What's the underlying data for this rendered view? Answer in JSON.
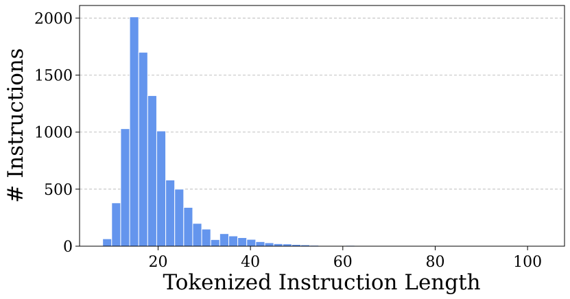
{
  "chart_data": {
    "type": "bar",
    "title": "",
    "xlabel": "Tokenized Instruction Length",
    "ylabel": "# Instructions",
    "xlim": [
      3,
      108
    ],
    "ylim": [
      0,
      2110
    ],
    "xticks": [
      20,
      40,
      60,
      80,
      100
    ],
    "yticks": [
      0,
      500,
      1000,
      1500,
      2000
    ],
    "grid": "horizontal dashed",
    "bar_color": "#6495ED",
    "bins": {
      "start": 8,
      "width": 1.95,
      "values": [
        65,
        380,
        1030,
        2010,
        1700,
        1320,
        1010,
        580,
        500,
        340,
        200,
        150,
        58,
        110,
        90,
        75,
        60,
        40,
        30,
        22,
        20,
        15,
        12,
        8,
        5,
        4,
        6,
        7,
        3,
        2,
        2,
        1,
        1,
        1,
        1,
        1,
        1,
        1,
        1,
        1,
        1,
        1,
        1,
        1,
        1,
        1,
        1,
        1,
        1,
        1
      ]
    }
  }
}
